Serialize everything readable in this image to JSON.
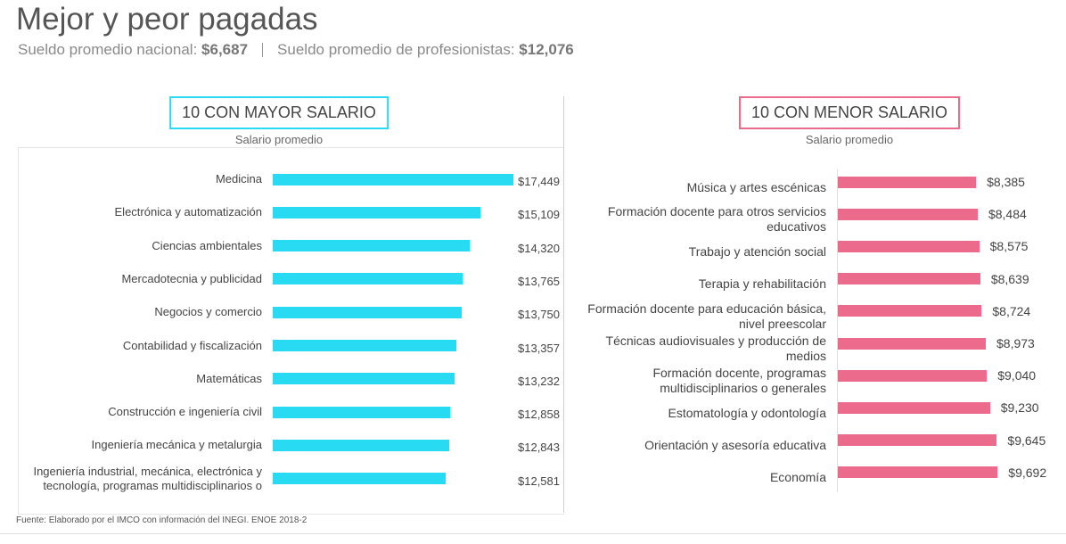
{
  "header": {
    "title": "Mejor y peor pagadas",
    "stats": [
      {
        "label": "Sueldo promedio nacional:",
        "value": "$6,687"
      },
      {
        "label": "Sueldo promedio de profesionistas:",
        "value": "$12,076"
      }
    ]
  },
  "chart_data": [
    {
      "type": "bar",
      "orientation": "horizontal",
      "title": "10 CON MAYOR SALARIO",
      "subtitle": "Salario promedio",
      "color": "#29daf3",
      "categories": [
        "Medicina",
        "Electrónica y automatización",
        "Ciencias ambientales",
        "Mercadotecnia y publicidad",
        "Negocios y comercio",
        "Contabilidad y fiscalización",
        "Matemáticas",
        "Construcción e ingeniería civil",
        "Ingeniería mecánica y metalurgia",
        "Ingeniería industrial, mecánica, electrónica y tecnología, programas multidisciplinarios o"
      ],
      "values": [
        17449,
        15109,
        14320,
        13765,
        13750,
        13357,
        13232,
        12858,
        12843,
        12581
      ],
      "value_labels": [
        "$17,449",
        "$15,109",
        "$14,320",
        "$13,765",
        "$13,750",
        "$13,357",
        "$13,232",
        "$12,858",
        "$12,843",
        "$12,581"
      ],
      "xlim": [
        0,
        20000
      ]
    },
    {
      "type": "bar",
      "orientation": "horizontal",
      "title": "10 CON MENOR SALARIO",
      "subtitle": "Salario promedio",
      "color": "#ec6a8b",
      "categories": [
        "Música y artes escénicas",
        "Formación docente para otros servicios educativos",
        "Trabajo y atención social",
        "Terapia y rehabilitación",
        "Formación docente para educación básica, nivel preescolar",
        "Técnicas audiovisuales y producción de medios",
        "Formación docente, programas multidisciplinarios o generales",
        "Estomatología y odontología",
        "Orientación y asesoría educativa",
        "Economía"
      ],
      "values": [
        8385,
        8484,
        8575,
        8639,
        8724,
        8973,
        9040,
        9230,
        9645,
        9692
      ],
      "value_labels": [
        "$8,385",
        "$8,484",
        "$8,575",
        "$8,639",
        "$8,724",
        "$8,973",
        "$9,040",
        "$9,230",
        "$9,645",
        "$9,692"
      ],
      "xlim": [
        0,
        10000
      ]
    }
  ],
  "source": "Fuente: Elaborado por el IMCO con información del INEGI. ENOE 2018-2"
}
